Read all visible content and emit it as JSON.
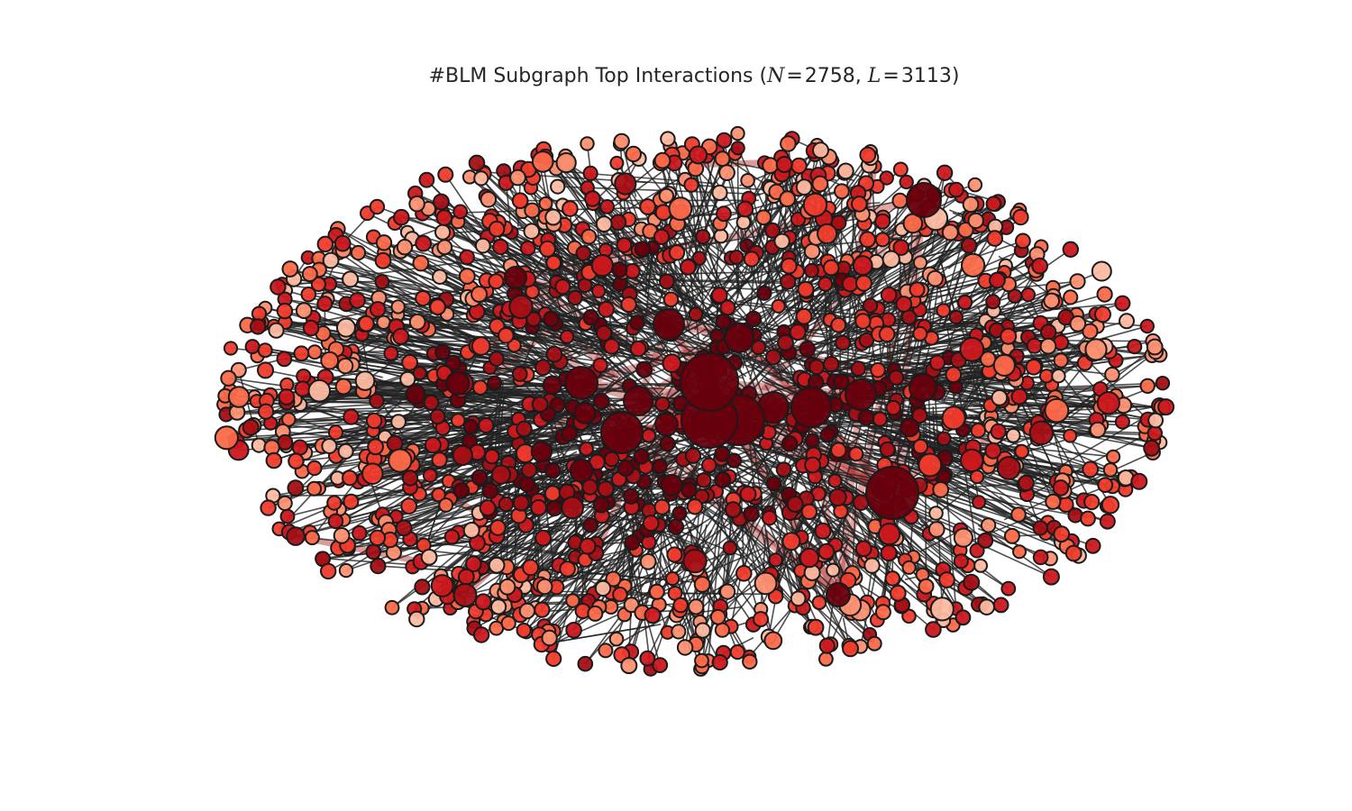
{
  "figure": {
    "title_prefix": "#BLM Subgraph Top Interactions (",
    "n_symbol": "N",
    "eq_sign": "=",
    "n_value": "2758",
    "separator": ", ",
    "l_symbol": "L",
    "l_value": "3113",
    "title_suffix": ")"
  },
  "chart_data": {
    "type": "network",
    "node_count": 2758,
    "link_count": 3113,
    "node_colormap": "Reds",
    "node_edge_color": "#1a1a1a",
    "edge_color": "#222222",
    "strong_edge_color": "#b22222",
    "colors": [
      "#fee0d2",
      "#fcbba1",
      "#fc9272",
      "#fb6a4a",
      "#ef3b2c",
      "#cb181d",
      "#a50f15",
      "#67000d"
    ]
  }
}
